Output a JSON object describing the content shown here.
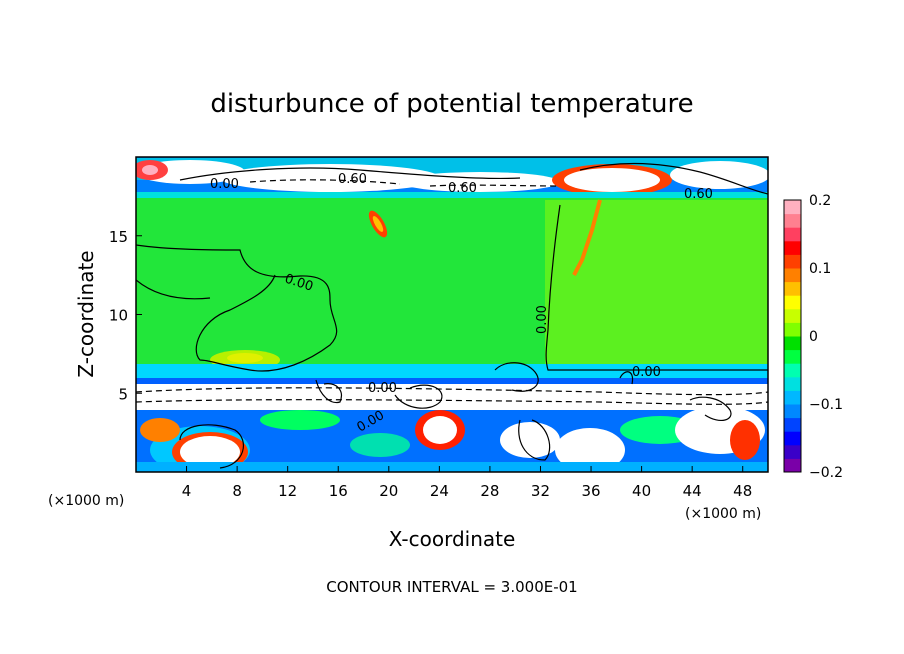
{
  "chart_data": {
    "type": "heatmap",
    "title": "disturbunce of potential temperature",
    "xlabel": "X-coordinate",
    "ylabel": "Z-coordinate",
    "x_unit_label": "(×1000 m)",
    "xlim": [
      0,
      50
    ],
    "ylim": [
      0,
      20
    ],
    "x_ticks": [
      4,
      8,
      12,
      16,
      20,
      24,
      28,
      32,
      36,
      40,
      44,
      48
    ],
    "y_ticks": [
      5,
      10,
      15
    ],
    "colorbar": {
      "range": [
        -0.2,
        0.2
      ],
      "ticks": [
        "0.2",
        "0.1",
        "0",
        "−0.1",
        "−0.2"
      ],
      "colors": [
        "#7a00a8",
        "#3a00c8",
        "#0000ff",
        "#0044ff",
        "#0088ff",
        "#00b8ff",
        "#00e0e0",
        "#00ffb0",
        "#00ff40",
        "#00e000",
        "#80ff00",
        "#c8ff00",
        "#ffff00",
        "#ffc000",
        "#ff8000",
        "#ff4000",
        "#ff0000",
        "#ff4060",
        "#ff8090",
        "#ffb0c0"
      ]
    },
    "contour_labels": [
      "0.00",
      "0.60",
      "0.60",
      "0.60",
      "0.00",
      "0.00",
      "0.00",
      "0.00",
      "0.00"
    ],
    "footer": "CONTOUR INTERVAL = 3.000E-01"
  }
}
